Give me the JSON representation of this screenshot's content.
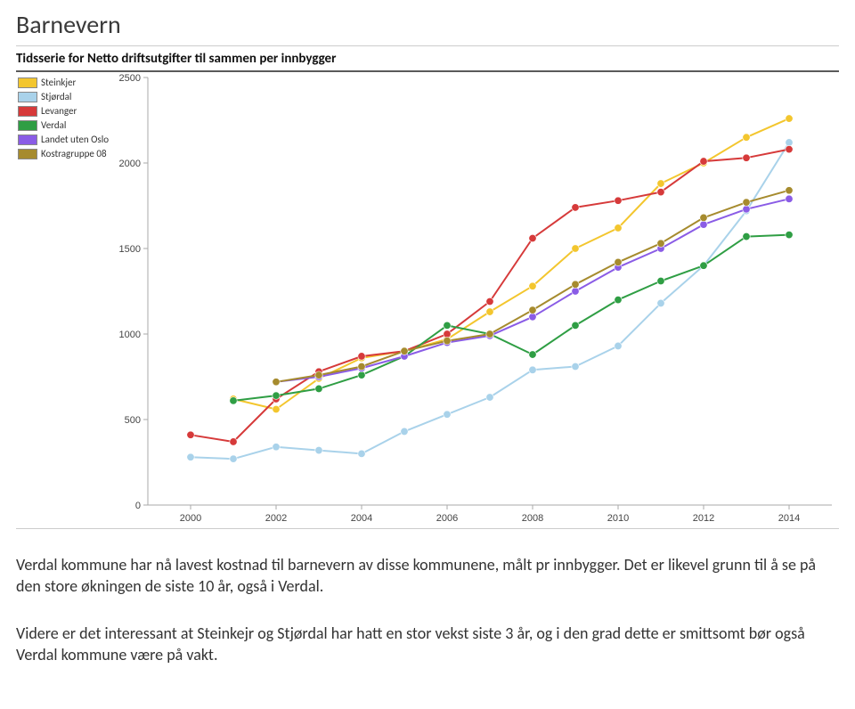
{
  "page_title": "Barnevern",
  "chart": {
    "type": "line",
    "title": "Tidsserie for Netto driftsutgifter til sammen per innbygger",
    "title_fontsize": 15,
    "title_weight": "bold",
    "background_color": "#ffffff",
    "x_years": [
      2000,
      2002,
      2004,
      2006,
      2008,
      2010,
      2012,
      2014
    ],
    "xlim": [
      1999,
      2015
    ],
    "ylim": [
      0,
      2500
    ],
    "ytick_step": 500,
    "tick_fontsize": 11,
    "axis_color": "#aaaaaa",
    "marker_size": 4.2,
    "line_width": 2,
    "legend": [
      {
        "label": "Steinkjer",
        "color": "#f3c62e"
      },
      {
        "label": "Stjørdal",
        "color": "#a9d2ea"
      },
      {
        "label": "Levanger",
        "color": "#d63a3a"
      },
      {
        "label": "Verdal",
        "color": "#2f9e44"
      },
      {
        "label": "Landet uten Oslo",
        "color": "#8a5ce6"
      },
      {
        "label": "Kostragruppe 08",
        "color": "#a68b2e"
      }
    ],
    "series": {
      "Steinkjer": [
        null,
        620,
        560,
        740,
        860,
        900,
        970,
        1130,
        1280,
        1500,
        1620,
        1880,
        2000,
        2150,
        2260
      ],
      "Stjørdal": [
        280,
        270,
        340,
        320,
        300,
        430,
        530,
        630,
        790,
        810,
        930,
        1180,
        1400,
        1720,
        2120
      ],
      "Levanger": [
        410,
        370,
        620,
        780,
        870,
        900,
        1000,
        1190,
        1560,
        1740,
        1780,
        1830,
        2010,
        2030,
        2080
      ],
      "Verdal": [
        null,
        610,
        640,
        680,
        760,
        870,
        1050,
        1000,
        880,
        1050,
        1200,
        1310,
        1400,
        1570,
        1580
      ],
      "Landet uten Oslo": [
        null,
        null,
        720,
        750,
        800,
        870,
        950,
        990,
        1100,
        1250,
        1390,
        1500,
        1640,
        1730,
        1790
      ],
      "Kostragruppe 08": [
        null,
        null,
        720,
        760,
        810,
        900,
        960,
        1000,
        1140,
        1290,
        1420,
        1530,
        1680,
        1770,
        1840
      ]
    }
  },
  "paragraph1": "Verdal kommune har nå lavest kostnad til barnevern av disse kommunene, målt pr innbygger. Det er likevel grunn til å se på den store økningen de siste 10 år, også i Verdal.",
  "paragraph2": "Videre er det interessant at Steinkejr og Stjørdal har hatt en stor vekst siste 3 år, og i den grad dette er smittsomt bør også Verdal kommune være på vakt."
}
